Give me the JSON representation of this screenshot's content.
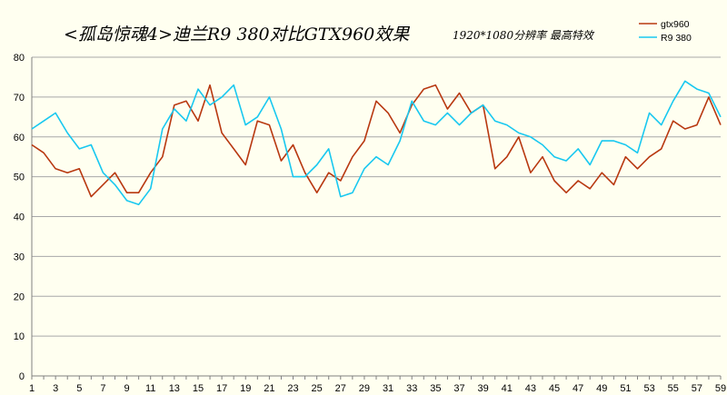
{
  "chart_data": {
    "type": "line",
    "title": "<孤岛惊魂4>迪兰R9 380对比GTX960效果",
    "subtitle": "1920*1080分辨率 最高特效",
    "xlabel": "",
    "ylabel": "",
    "ylim": [
      0,
      80
    ],
    "yticks": [
      0,
      10,
      20,
      30,
      40,
      50,
      60,
      70,
      80
    ],
    "x": [
      1,
      2,
      3,
      4,
      5,
      6,
      7,
      8,
      9,
      10,
      11,
      12,
      13,
      14,
      15,
      16,
      17,
      18,
      19,
      20,
      21,
      22,
      23,
      24,
      25,
      26,
      27,
      28,
      29,
      30,
      31,
      32,
      33,
      34,
      35,
      36,
      37,
      38,
      39,
      40,
      41,
      42,
      43,
      44,
      45,
      46,
      47,
      48,
      49,
      50,
      51,
      52,
      53,
      54,
      55,
      56,
      57,
      58,
      59
    ],
    "xticks": [
      1,
      3,
      5,
      7,
      9,
      11,
      13,
      15,
      17,
      19,
      21,
      23,
      25,
      27,
      29,
      31,
      33,
      35,
      37,
      39,
      41,
      43,
      45,
      47,
      49,
      51,
      53,
      55,
      57,
      59
    ],
    "grid": "horizontal",
    "legend_position": "top-right",
    "series": [
      {
        "name": "gtx960",
        "color": "#b83810",
        "values": [
          58,
          56,
          52,
          51,
          52,
          45,
          48,
          51,
          46,
          46,
          51,
          55,
          68,
          69,
          64,
          73,
          61,
          57,
          53,
          64,
          63,
          54,
          58,
          51,
          46,
          51,
          49,
          55,
          59,
          69,
          66,
          61,
          68,
          72,
          73,
          67,
          71,
          66,
          68,
          52,
          55,
          60,
          51,
          55,
          49,
          46,
          49,
          47,
          51,
          48,
          55,
          52,
          55,
          57,
          64,
          62,
          63,
          70,
          63
        ]
      },
      {
        "name": "R9 380",
        "color": "#18c8f0",
        "values": [
          62,
          64,
          66,
          61,
          57,
          58,
          51,
          48,
          44,
          43,
          47,
          62,
          67,
          64,
          72,
          68,
          70,
          73,
          63,
          65,
          70,
          62,
          50,
          50,
          53,
          57,
          45,
          46,
          52,
          55,
          53,
          59,
          69,
          64,
          63,
          66,
          63,
          66,
          68,
          64,
          63,
          61,
          60,
          58,
          55,
          54,
          57,
          53,
          59,
          59,
          58,
          56,
          66,
          63,
          69,
          74,
          72,
          71,
          65
        ]
      }
    ]
  }
}
